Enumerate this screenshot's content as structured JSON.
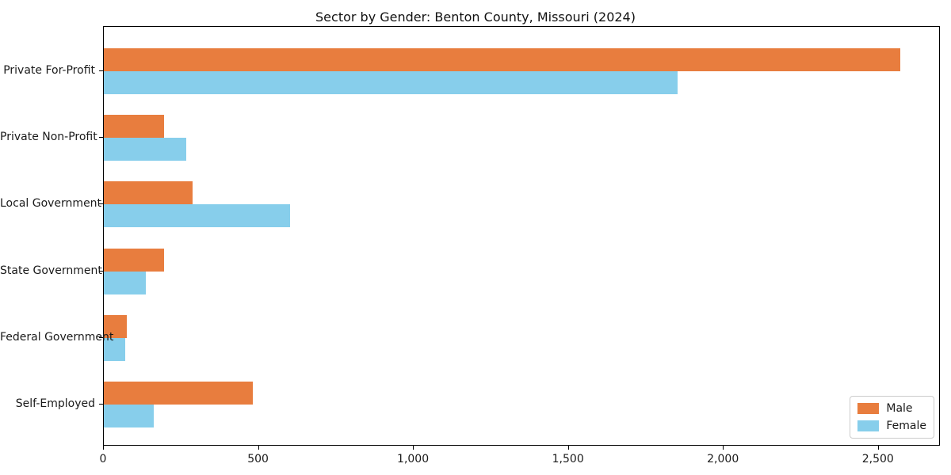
{
  "title": "Sector by Gender: Benton County, Missouri (2024)",
  "chart_data": {
    "type": "bar",
    "orientation": "horizontal",
    "title": "Sector by Gender: Benton County, Missouri (2024)",
    "categories": [
      "Private For-Profit",
      "Private Non-Profit",
      "Local Government",
      "State Government",
      "Federal Government",
      "Self-Employed"
    ],
    "series": [
      {
        "name": "Male",
        "color": "#e87d3e",
        "values": [
          2570,
          195,
          285,
          195,
          75,
          480
        ]
      },
      {
        "name": "Female",
        "color": "#87ceeb",
        "values": [
          1850,
          265,
          600,
          135,
          68,
          160
        ]
      }
    ],
    "xlim": [
      0,
      2700
    ],
    "x_ticks": [
      0,
      500,
      1000,
      1500,
      2000,
      2500
    ],
    "x_tick_labels": [
      "0",
      "500",
      "1,000",
      "1,500",
      "2,000",
      "2,500"
    ],
    "xlabel": "",
    "ylabel": "",
    "grid": false,
    "legend": {
      "position": "lower right",
      "entries": [
        "Male",
        "Female"
      ]
    }
  }
}
